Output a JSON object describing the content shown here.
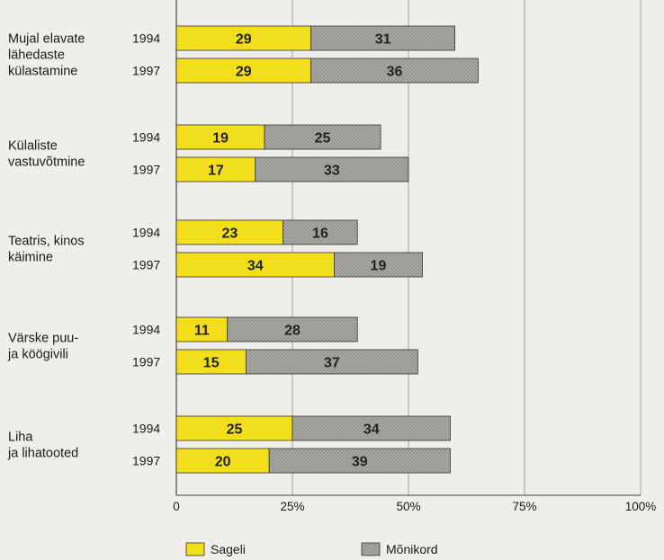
{
  "chart_data": {
    "type": "bar",
    "orientation": "horizontal",
    "stacked": true,
    "categories": [
      {
        "label_lines": [
          "Mujal elavate",
          "lähedaste",
          "külastamine"
        ]
      },
      {
        "label_lines": [
          "Külaliste",
          "vastuvõtmine"
        ]
      },
      {
        "label_lines": [
          "Teatris, kinos",
          "käimine"
        ]
      },
      {
        "label_lines": [
          "Värske puu-",
          "ja köögivili"
        ]
      },
      {
        "label_lines": [
          "Liha",
          "ja lihatooted"
        ]
      }
    ],
    "years": [
      "1994",
      "1997"
    ],
    "series": [
      {
        "name": "Sageli",
        "color": "#f3de1c",
        "values": [
          [
            29,
            29
          ],
          [
            19,
            17
          ],
          [
            23,
            34
          ],
          [
            11,
            15
          ],
          [
            25,
            20
          ]
        ]
      },
      {
        "name": "Mõnikord",
        "color": "#a9a9a6",
        "pattern": "crosshatch",
        "values": [
          [
            31,
            36
          ],
          [
            25,
            33
          ],
          [
            16,
            19
          ],
          [
            28,
            37
          ],
          [
            34,
            39
          ]
        ]
      }
    ],
    "x_ticks": [
      "0",
      "25%",
      "50%",
      "75%",
      "100%"
    ],
    "xlim": [
      0,
      100
    ],
    "grid": "vertical",
    "legend_position": "bottom"
  }
}
